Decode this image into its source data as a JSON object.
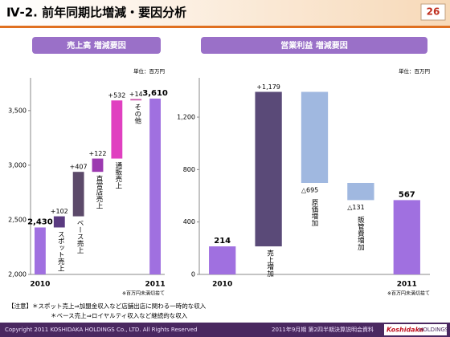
{
  "header": {
    "title": "Ⅳ-2. 前年同期比増減・要因分析",
    "page": "26"
  },
  "chart_data": [
    {
      "type": "waterfall",
      "title": "売上高 増減要因",
      "unit_label": "単位：百万円",
      "note": "※百万円未満切捨て",
      "categories": [
        "2010",
        "スポット売上",
        "ベース売上",
        "直営店売上",
        "通販売上",
        "その他",
        "2011"
      ],
      "values": [
        2430,
        102,
        407,
        122,
        532,
        14,
        3610
      ],
      "value_labels": [
        "2,430",
        "+102",
        "+407",
        "+122",
        "+532",
        "+14",
        "3,610"
      ],
      "colors": [
        "#a070e0",
        "#5a3a80",
        "#5c4a6a",
        "#9c3ab0",
        "#e040c0",
        "#d060b0",
        "#a070e0"
      ],
      "ylim": [
        2000,
        3800
      ],
      "yticks": [
        {
          "value": 2000,
          "label": "2,000"
        },
        {
          "value": 2500,
          "label": "2,500"
        },
        {
          "value": 3000,
          "label": "3,000"
        },
        {
          "value": 3500,
          "label": "3,500"
        }
      ]
    },
    {
      "type": "waterfall",
      "title": "営業利益 増減要因",
      "unit_label": "単位：百万円",
      "note": "※百万円未満切捨て",
      "categories": [
        "2010",
        "売上増加",
        "原価増加",
        "販管費増加",
        "2011"
      ],
      "values": [
        214,
        1179,
        -695,
        -131,
        567
      ],
      "value_labels": [
        "214",
        "+1,179",
        "△695",
        "△131",
        "567"
      ],
      "colors": [
        "#a070e0",
        "#5a4a78",
        "#a0b8e0",
        "#a0b8e0",
        "#a070e0"
      ],
      "ylim": [
        0,
        1500
      ],
      "yticks": [
        0,
        400,
        800,
        {
          "value": 1200,
          "label": "1,200"
        }
      ]
    }
  ],
  "notes": [
    "【注意】＊スポット売上⇒加盟金収入など店舗出店に関わる一時的な収入",
    "＊ベース売上⇒ロイヤルティ収入など継続的な収入"
  ],
  "footer": {
    "copyright": "Copyright 2011 KOSHIDAKA HOLDINGS Co., LTD. All Rights Reserved",
    "doc": "2011年9月期 第2四半期決算説明会資料",
    "logo_main": "Koshidaka",
    "logo_sub": "HOLDINGS"
  }
}
